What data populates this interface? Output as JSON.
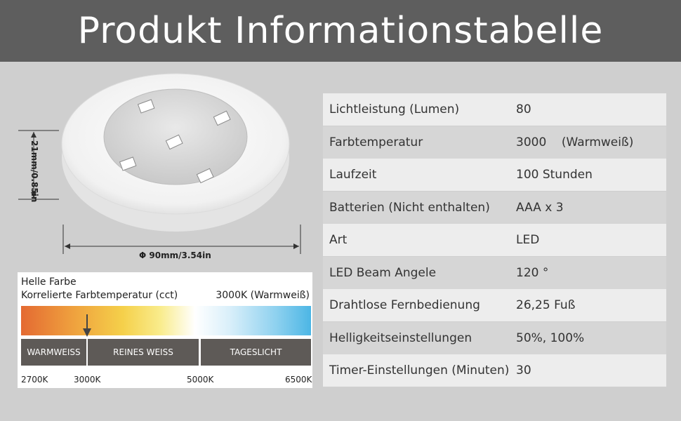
{
  "header": {
    "title": "Produkt Informationstabelle"
  },
  "dimensions": {
    "height_label": "21mm/0.85in",
    "diameter_label": "Φ 90mm/3.54in"
  },
  "color_temperature": {
    "title": "Helle Farbe",
    "subtitle": "Korrelierte Farbtemperatur (cct)",
    "current": "3000K (Warmweiß)",
    "segments": [
      "WARMWEISS",
      "REINES WEISS",
      "TAGESLICHT"
    ],
    "ticks": [
      "2700K",
      "3000K",
      "5000K",
      "6500K"
    ],
    "arrow_position_fraction": 0.225
  },
  "specs": [
    {
      "label": "Lichtleistung (Lumen)",
      "value": "80"
    },
    {
      "label": "Farbtemperatur",
      "value": "3000    (Warmweiß)"
    },
    {
      "label": "Laufzeit",
      "value": "100 Stunden"
    },
    {
      "label": "Batterien (Nicht enthalten)",
      "value": "AAA x 3"
    },
    {
      "label": "Art",
      "value": "LED"
    },
    {
      "label": "LED Beam Angele",
      "value": "120 °"
    },
    {
      "label": "Drahtlose Fernbedienung",
      "value": "26,25 Fuß"
    },
    {
      "label": "Helligkeitseinstellungen",
      "value": "50%, 100%"
    },
    {
      "label": "Timer-Einstellungen (Minuten)",
      "value": "30"
    }
  ],
  "colors": {
    "header_bg": "#5e5e5e",
    "page_bg": "#cfcfcf",
    "row_light": "#ededed",
    "row_dark": "#d6d6d6",
    "segment_bg": "#5e5a57"
  }
}
